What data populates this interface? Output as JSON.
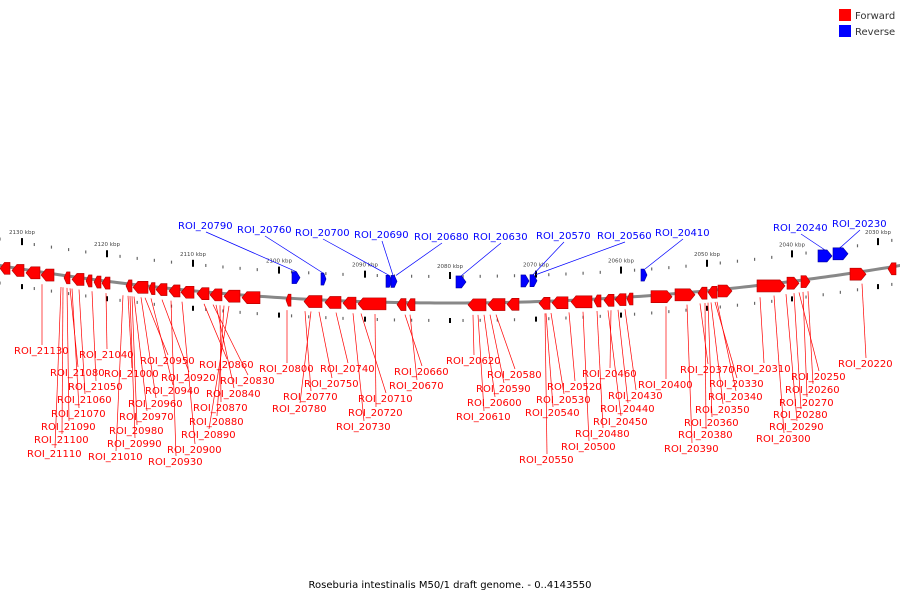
{
  "legend": {
    "forward_label": "Forward",
    "reverse_label": "Reverse",
    "forward_color": "#ff0000",
    "reverse_color": "#0000ff"
  },
  "caption": "Roseburia intestinalis M50/1 draft genome. - 0..4143550",
  "scale_ticks": [
    "2130 kbp",
    "2120 kbp",
    "2110 kbp",
    "2100 kbp",
    "2090 kbp",
    "2080 kbp",
    "2070 kbp",
    "2060 kbp",
    "2050 kbp",
    "2040 kbp",
    "2030 kbp"
  ],
  "reverse_labels": [
    "ROI_20790",
    "ROI_20760",
    "ROI_20700",
    "ROI_20690",
    "ROI_20680",
    "ROI_20630",
    "ROI_20570",
    "ROI_20560",
    "ROI_20410",
    "ROI_20240",
    "ROI_20230"
  ],
  "forward_labels": [
    "ROI_21130",
    "ROI_21040",
    "ROI_21080",
    "ROI_21000",
    "ROI_21050",
    "ROI_21060",
    "ROI_21070",
    "ROI_21090",
    "ROI_21100",
    "ROI_21110",
    "ROI_21010",
    "ROI_20950",
    "ROI_20920",
    "ROI_20940",
    "ROI_20960",
    "ROI_20970",
    "ROI_20980",
    "ROI_20990",
    "ROI_20900",
    "ROI_20930",
    "ROI_20860",
    "ROI_20830",
    "ROI_20840",
    "ROI_20870",
    "ROI_20880",
    "ROI_20890",
    "ROI_20800",
    "ROI_20770",
    "ROI_20780",
    "ROI_20740",
    "ROI_20750",
    "ROI_20710",
    "ROI_20720",
    "ROI_20730",
    "ROI_20660",
    "ROI_20670",
    "ROI_20620",
    "ROI_20580",
    "ROI_20590",
    "ROI_20600",
    "ROI_20610",
    "ROI_20550",
    "ROI_20520",
    "ROI_20530",
    "ROI_20540",
    "ROI_20460",
    "ROI_20430",
    "ROI_20440",
    "ROI_20450",
    "ROI_20480",
    "ROI_20500",
    "ROI_20400",
    "ROI_20370",
    "ROI_20330",
    "ROI_20340",
    "ROI_20350",
    "ROI_20360",
    "ROI_20380",
    "ROI_20390",
    "ROI_20310",
    "ROI_20250",
    "ROI_20260",
    "ROI_20270",
    "ROI_20280",
    "ROI_20290",
    "ROI_20300",
    "ROI_20220"
  ]
}
